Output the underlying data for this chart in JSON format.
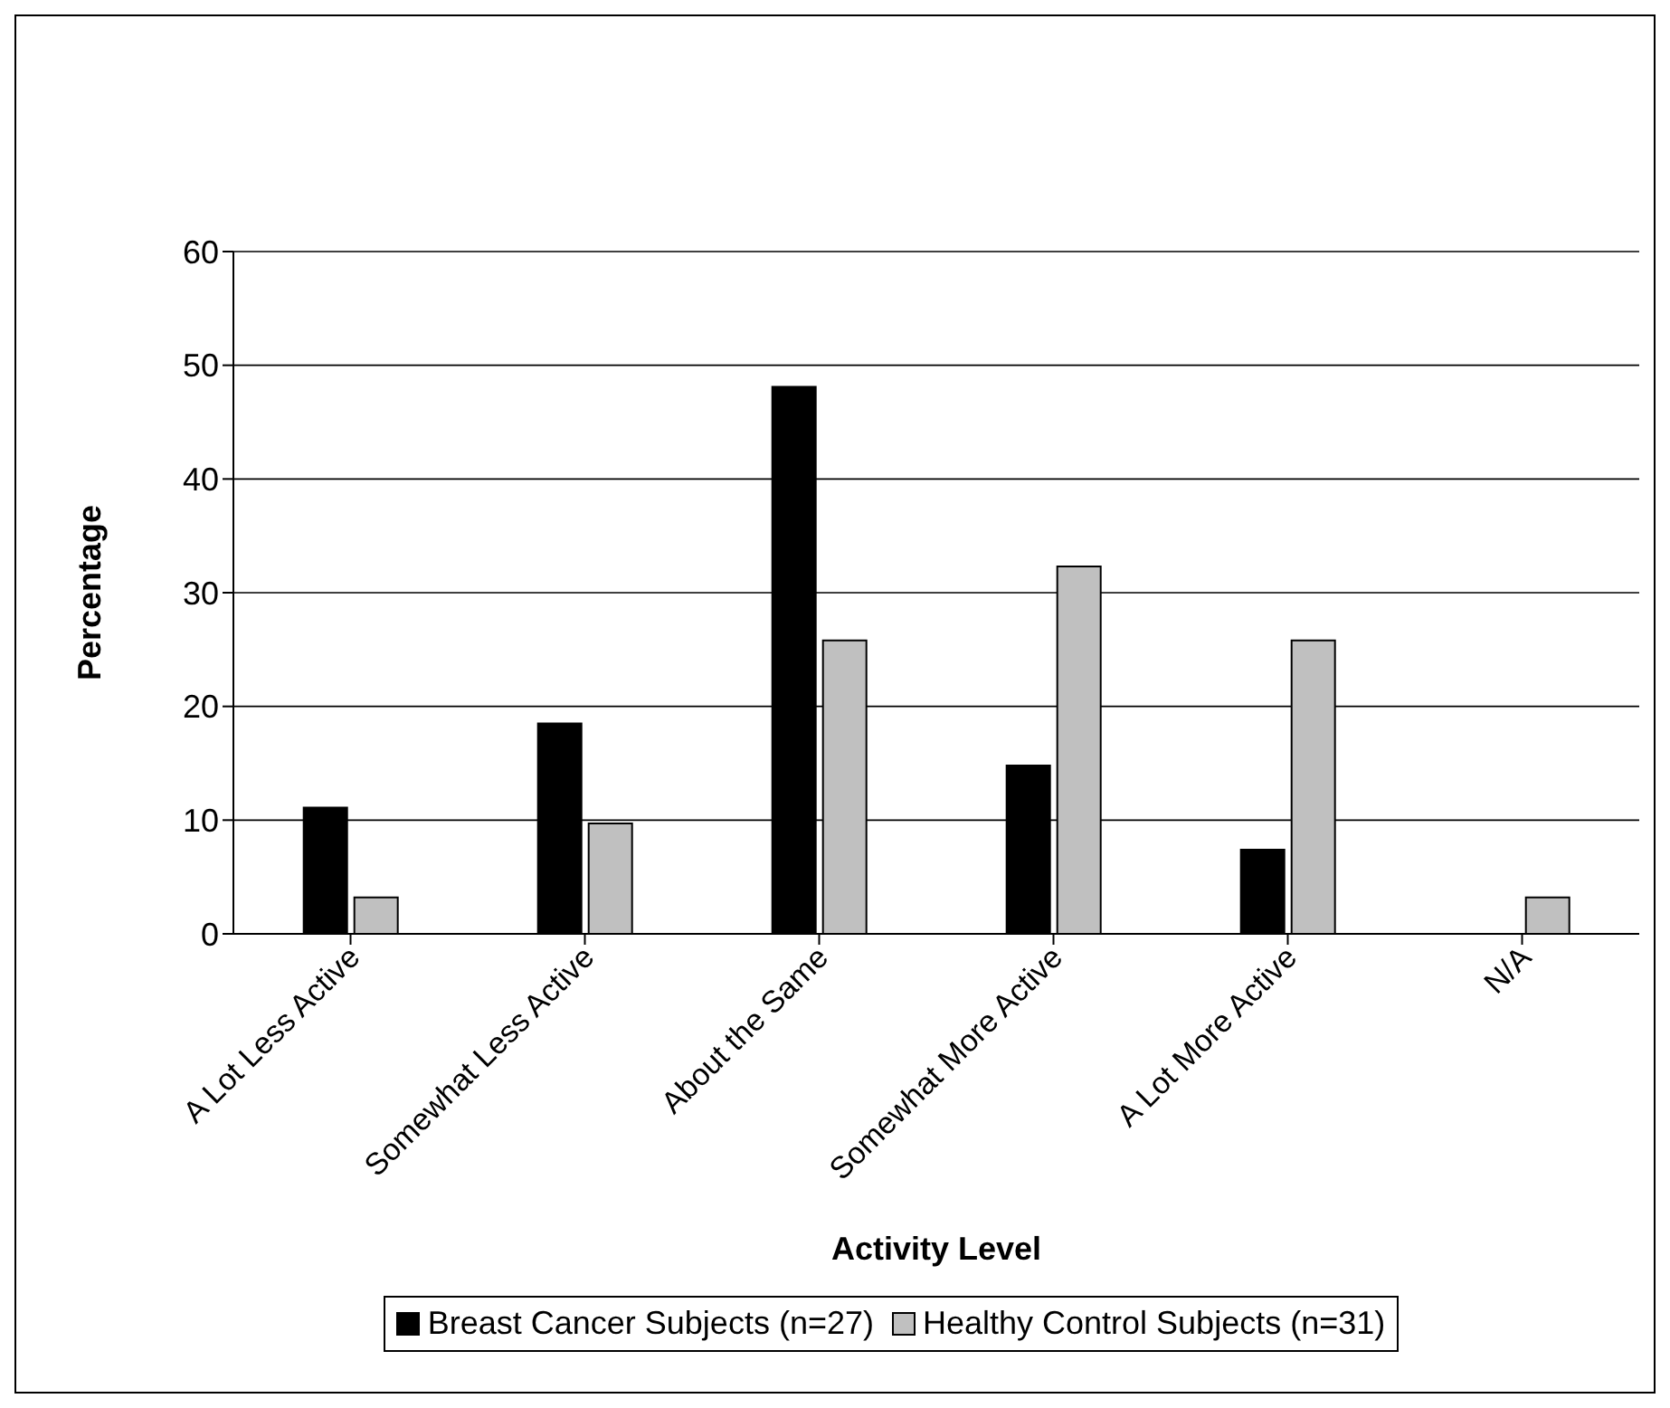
{
  "chart_data": {
    "type": "bar",
    "xlabel": "Activity Level",
    "ylabel": "Percentage",
    "categories": [
      "A Lot Less Active",
      "Somewhat Less Active",
      "About the Same",
      "Somewhat More Active",
      "A Lot More Active",
      "N/A"
    ],
    "series": [
      {
        "name": "Breast Cancer Subjects (n=27)",
        "color": "#000000",
        "values": [
          11.1,
          18.5,
          48.1,
          14.8,
          7.4,
          0
        ]
      },
      {
        "name": "Healthy Control Subjects (n=31)",
        "color": "#c0c0c0",
        "values": [
          3.2,
          9.7,
          25.8,
          32.3,
          25.8,
          3.2
        ]
      }
    ],
    "ylim": [
      0,
      60
    ],
    "yticks": [
      0,
      10,
      20,
      30,
      40,
      50,
      60
    ],
    "grid": "y",
    "legend": "bottom"
  }
}
